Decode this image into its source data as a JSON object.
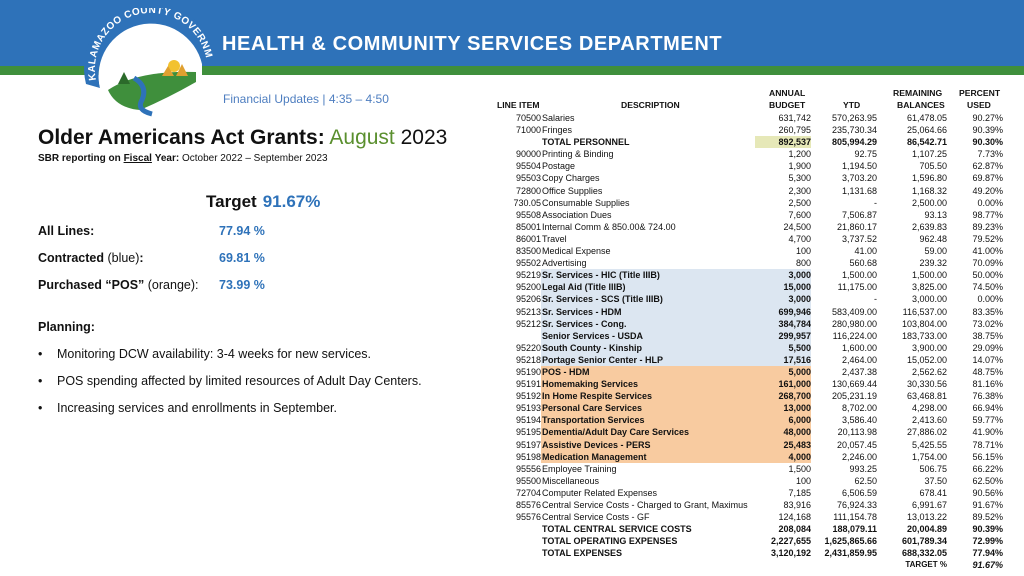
{
  "header": {
    "title": "HEALTH & COMMUNITY SERVICES DEPARTMENT",
    "logo_text": "KALAMAZOO COUNTY GOVERNMENT"
  },
  "subheading": "Financial Updates  | 4:35 – 4:50",
  "title": {
    "bold": "Older Americans Act Grants:",
    "month": "August",
    "year": "2023"
  },
  "sbr": {
    "prefix": "SBR reporting on",
    "fiscal": "Fiscal",
    "year_label": "Year:",
    "range": "October 2022 – September 2023"
  },
  "target": {
    "label": "Target",
    "value": "91.67%"
  },
  "stats": [
    {
      "label_bold": "All Lines:",
      "label_rest": "",
      "value": "77.94 %"
    },
    {
      "label_bold": "Contracted",
      "label_rest": " (blue)",
      "label_colon": ":",
      "value": "69.81 %"
    },
    {
      "label_bold": "Purchased “POS”",
      "label_rest": " (orange):",
      "label_colon": "",
      "value": "73.99 %"
    }
  ],
  "planning": {
    "heading": "Planning:",
    "bullets": [
      "Monitoring DCW availability: 3-4 weeks for new services.",
      "POS spending affected by limited resources of Adult Day Centers.",
      "Increasing services and enrollments in September."
    ]
  },
  "table": {
    "headers": {
      "line_item": "LINE ITEM",
      "description": "DESCRIPTION",
      "budget_1": "ANNUAL",
      "budget_2": "BUDGET",
      "ytd": "YTD",
      "remaining_1": "REMAINING",
      "remaining_2": "BALANCES",
      "percent_1": "PERCENT",
      "percent_2": "USED"
    },
    "rows": [
      {
        "line": "70500",
        "desc": "Salaries",
        "budget": "631,742",
        "ytd": "570,263.95",
        "rem": "61,478.05",
        "pct": "90.27%",
        "style": ""
      },
      {
        "line": "71000",
        "desc": "Fringes",
        "budget": "260,795",
        "ytd": "235,730.34",
        "rem": "25,064.66",
        "pct": "90.39%",
        "style": ""
      },
      {
        "line": "",
        "desc": "TOTAL PERSONNEL",
        "budget": "892,537",
        "ytd": "805,994.29",
        "rem": "86,542.71",
        "pct": "90.30%",
        "style": "total personnel"
      },
      {
        "line": "90000",
        "desc": "Printing & Binding",
        "budget": "1,200",
        "ytd": "92.75",
        "rem": "1,107.25",
        "pct": "7.73%",
        "style": ""
      },
      {
        "line": "95504",
        "desc": "Postage",
        "budget": "1,900",
        "ytd": "1,194.50",
        "rem": "705.50",
        "pct": "62.87%",
        "style": ""
      },
      {
        "line": "95503",
        "desc": "Copy Charges",
        "budget": "5,300",
        "ytd": "3,703.20",
        "rem": "1,596.80",
        "pct": "69.87%",
        "style": ""
      },
      {
        "line": "72800",
        "desc": "Office Supplies",
        "budget": "2,300",
        "ytd": "1,131.68",
        "rem": "1,168.32",
        "pct": "49.20%",
        "style": ""
      },
      {
        "line": "730.05",
        "desc": "Consumable Supplies",
        "budget": "2,500",
        "ytd": "-",
        "rem": "2,500.00",
        "pct": "0.00%",
        "style": ""
      },
      {
        "line": "95508",
        "desc": "Association Dues",
        "budget": "7,600",
        "ytd": "7,506.87",
        "rem": "93.13",
        "pct": "98.77%",
        "style": ""
      },
      {
        "line": "85001",
        "desc": "Internal Comm & 850.00& 724.00",
        "budget": "24,500",
        "ytd": "21,860.17",
        "rem": "2,639.83",
        "pct": "89.23%",
        "style": ""
      },
      {
        "line": "86001",
        "desc": "Travel",
        "budget": "4,700",
        "ytd": "3,737.52",
        "rem": "962.48",
        "pct": "79.52%",
        "style": ""
      },
      {
        "line": "83500",
        "desc": "Medical Expense",
        "budget": "100",
        "ytd": "41.00",
        "rem": "59.00",
        "pct": "41.00%",
        "style": ""
      },
      {
        "line": "95502",
        "desc": "Advertising",
        "budget": "800",
        "ytd": "560.68",
        "rem": "239.32",
        "pct": "70.09%",
        "style": ""
      },
      {
        "line": "95219",
        "desc": "Sr. Services - HIC (Title IIIB)",
        "budget": "3,000",
        "ytd": "1,500.00",
        "rem": "1,500.00",
        "pct": "50.00%",
        "style": "bluebg"
      },
      {
        "line": "95200",
        "desc": "Legal Aid (Title IIIB)",
        "budget": "15,000",
        "ytd": "11,175.00",
        "rem": "3,825.00",
        "pct": "74.50%",
        "style": "bluebg"
      },
      {
        "line": "95206",
        "desc": "Sr. Services - SCS (Title IIIB)",
        "budget": "3,000",
        "ytd": "-",
        "rem": "3,000.00",
        "pct": "0.00%",
        "style": "bluebg"
      },
      {
        "line": "95213",
        "desc": "Sr. Services - HDM",
        "budget": "699,946",
        "ytd": "583,409.00",
        "rem": "116,537.00",
        "pct": "83.35%",
        "style": "bluebg"
      },
      {
        "line": "95212",
        "desc": "Sr. Services - Cong.",
        "budget": "384,784",
        "ytd": "280,980.00",
        "rem": "103,804.00",
        "pct": "73.02%",
        "style": "bluebg"
      },
      {
        "line": "",
        "desc": "Senior Services - USDA",
        "budget": "299,957",
        "ytd": "116,224.00",
        "rem": "183,733.00",
        "pct": "38.75%",
        "style": "bluebg"
      },
      {
        "line": "95220",
        "desc": "South County - Kinship",
        "budget": "5,500",
        "ytd": "1,600.00",
        "rem": "3,900.00",
        "pct": "29.09%",
        "style": "bluebg"
      },
      {
        "line": "95218",
        "desc": "Portage Senior Center - HLP",
        "budget": "17,516",
        "ytd": "2,464.00",
        "rem": "15,052.00",
        "pct": "14.07%",
        "style": "bluebg"
      },
      {
        "line": "95190",
        "desc": "POS - HDM",
        "budget": "5,000",
        "ytd": "2,437.38",
        "rem": "2,562.62",
        "pct": "48.75%",
        "style": "orangebg"
      },
      {
        "line": "95191",
        "desc": "Homemaking Services",
        "budget": "161,000",
        "ytd": "130,669.44",
        "rem": "30,330.56",
        "pct": "81.16%",
        "style": "orangebg"
      },
      {
        "line": "95192",
        "desc": "In Home Respite Services",
        "budget": "268,700",
        "ytd": "205,231.19",
        "rem": "63,468.81",
        "pct": "76.38%",
        "style": "orangebg"
      },
      {
        "line": "95193",
        "desc": "Personal Care Services",
        "budget": "13,000",
        "ytd": "8,702.00",
        "rem": "4,298.00",
        "pct": "66.94%",
        "style": "orangebg"
      },
      {
        "line": "95194",
        "desc": "Transportation Services",
        "budget": "6,000",
        "ytd": "3,586.40",
        "rem": "2,413.60",
        "pct": "59.77%",
        "style": "orangebg"
      },
      {
        "line": "95195",
        "desc": "Dementia/Adult Day Care Services",
        "budget": "48,000",
        "ytd": "20,113.98",
        "rem": "27,886.02",
        "pct": "41.90%",
        "style": "orangebg"
      },
      {
        "line": "95197",
        "desc": "Assistive Devices - PERS",
        "budget": "25,483",
        "ytd": "20,057.45",
        "rem": "5,425.55",
        "pct": "78.71%",
        "style": "orangebg"
      },
      {
        "line": "95198",
        "desc": "Medication Management",
        "budget": "4,000",
        "ytd": "2,246.00",
        "rem": "1,754.00",
        "pct": "56.15%",
        "style": "orangebg"
      },
      {
        "line": "95556",
        "desc": "Employee Training",
        "budget": "1,500",
        "ytd": "993.25",
        "rem": "506.75",
        "pct": "66.22%",
        "style": ""
      },
      {
        "line": "95500",
        "desc": "Miscellaneous",
        "budget": "100",
        "ytd": "62.50",
        "rem": "37.50",
        "pct": "62.50%",
        "style": ""
      },
      {
        "line": "72704",
        "desc": "Computer Related Expenses",
        "budget": "7,185",
        "ytd": "6,506.59",
        "rem": "678.41",
        "pct": "90.56%",
        "style": ""
      },
      {
        "line": "85576",
        "desc": "Central Service Costs - Charged to Grant, Maximus",
        "budget": "83,916",
        "ytd": "76,924.33",
        "rem": "6,991.67",
        "pct": "91.67%",
        "style": ""
      },
      {
        "line": "95576",
        "desc": "Central Service Costs - GF",
        "budget": "124,168",
        "ytd": "111,154.78",
        "rem": "13,013.22",
        "pct": "89.52%",
        "style": ""
      },
      {
        "line": "",
        "desc": "TOTAL CENTRAL SERVICE COSTS",
        "budget": "208,084",
        "ytd": "188,079.11",
        "rem": "20,004.89",
        "pct": "90.39%",
        "style": "total"
      },
      {
        "line": "",
        "desc": "TOTAL OPERATING EXPENSES",
        "budget": "2,227,655",
        "ytd": "1,625,865.66",
        "rem": "601,789.34",
        "pct": "72.99%",
        "style": "total"
      },
      {
        "line": "",
        "desc": "TOTAL EXPENSES",
        "budget": "3,120,192",
        "ytd": "2,431,859.95",
        "rem": "688,332.05",
        "pct": "77.94%",
        "style": "total"
      },
      {
        "line": "",
        "desc": "TARGET %",
        "budget": "",
        "ytd": "",
        "rem": "",
        "pct": "91.67%",
        "style": "targetrow"
      }
    ]
  }
}
